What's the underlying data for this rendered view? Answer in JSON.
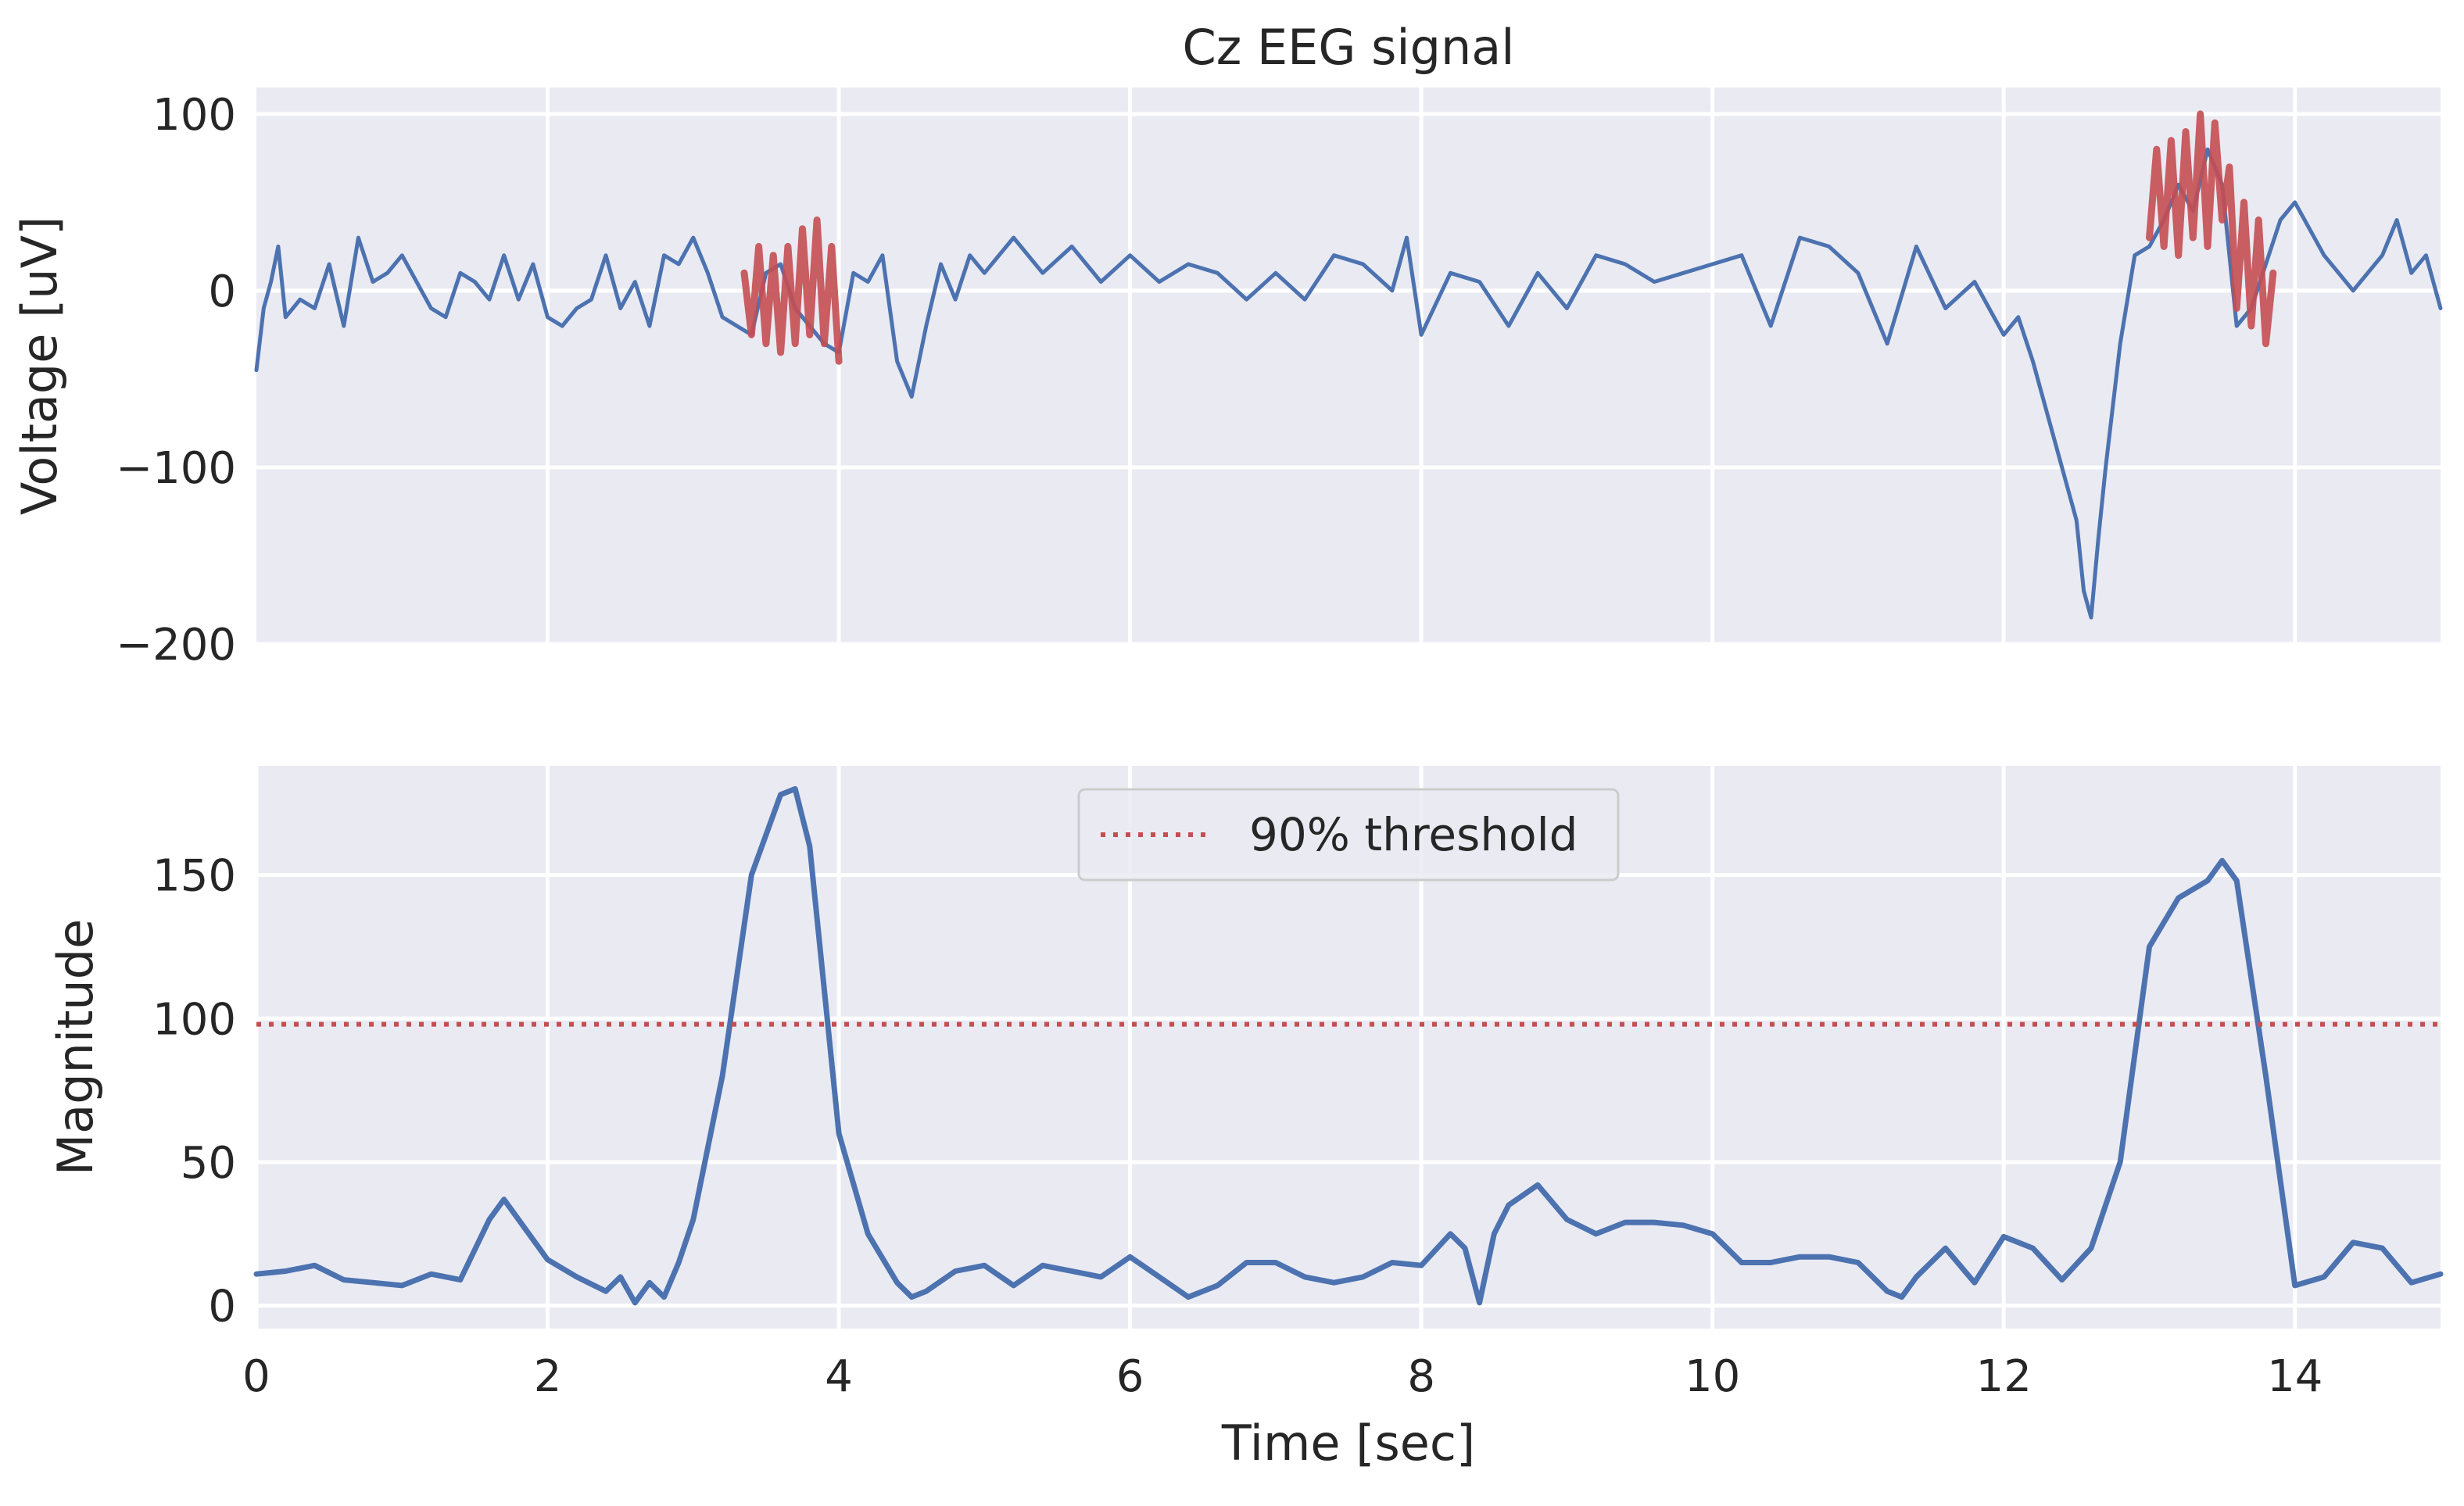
{
  "chart_data": [
    {
      "type": "line",
      "title": "Cz EEG signal",
      "xlabel": "",
      "ylabel": "Voltage [uV]",
      "xlim": [
        0,
        15
      ],
      "ylim": [
        -200,
        115
      ],
      "xticks": [
        2,
        4,
        6,
        8,
        10,
        12,
        14
      ],
      "yticks": [
        100,
        0,
        -100,
        -200
      ],
      "ytick_labels": [
        "100",
        "0",
        "−100",
        "−200"
      ],
      "grid": true,
      "colors": {
        "signal": "#4c72b0",
        "highlight": "#c44e52",
        "background": "#eaeaf2"
      },
      "series": [
        {
          "role": "signal",
          "x": [
            0.0,
            0.05,
            0.1,
            0.15,
            0.2,
            0.3,
            0.4,
            0.5,
            0.6,
            0.7,
            0.8,
            0.9,
            1.0,
            1.1,
            1.2,
            1.3,
            1.4,
            1.5,
            1.6,
            1.7,
            1.8,
            1.9,
            2.0,
            2.1,
            2.2,
            2.3,
            2.4,
            2.5,
            2.6,
            2.7,
            2.8,
            2.9,
            3.0,
            3.1,
            3.2,
            3.3,
            3.4,
            3.5,
            3.6,
            3.7,
            3.8,
            3.9,
            4.0,
            4.1,
            4.2,
            4.3,
            4.4,
            4.5,
            4.6,
            4.7,
            4.8,
            4.9,
            5.0,
            5.2,
            5.4,
            5.6,
            5.8,
            6.0,
            6.2,
            6.4,
            6.6,
            6.8,
            7.0,
            7.2,
            7.4,
            7.6,
            7.8,
            7.9,
            8.0,
            8.2,
            8.4,
            8.6,
            8.8,
            9.0,
            9.2,
            9.4,
            9.6,
            9.8,
            10.0,
            10.2,
            10.4,
            10.6,
            10.8,
            11.0,
            11.2,
            11.4,
            11.6,
            11.8,
            12.0,
            12.1,
            12.2,
            12.3,
            12.4,
            12.5,
            12.55,
            12.6,
            12.65,
            12.7,
            12.8,
            12.9,
            13.0,
            13.1,
            13.2,
            13.3,
            13.4,
            13.5,
            13.6,
            13.7,
            13.8,
            13.9,
            14.0,
            14.2,
            14.4,
            14.6,
            14.7,
            14.8,
            14.9,
            15.0
          ],
          "y": [
            -45,
            -10,
            5,
            25,
            -15,
            -5,
            -10,
            15,
            -20,
            30,
            5,
            10,
            20,
            5,
            -10,
            -15,
            10,
            5,
            -5,
            20,
            -5,
            15,
            -15,
            -20,
            -10,
            -5,
            20,
            -10,
            5,
            -20,
            20,
            15,
            30,
            10,
            -15,
            -20,
            -25,
            10,
            15,
            -10,
            -20,
            -30,
            -35,
            10,
            5,
            20,
            -40,
            -60,
            -20,
            15,
            -5,
            20,
            10,
            30,
            10,
            25,
            5,
            20,
            5,
            15,
            10,
            -5,
            10,
            -5,
            20,
            15,
            0,
            30,
            -25,
            10,
            5,
            -20,
            10,
            -10,
            20,
            15,
            5,
            10,
            15,
            20,
            -20,
            30,
            25,
            10,
            -30,
            25,
            -10,
            5,
            -25,
            -15,
            -40,
            -70,
            -100,
            -130,
            -170,
            -185,
            -140,
            -100,
            -30,
            20,
            25,
            40,
            60,
            45,
            80,
            60,
            -20,
            -10,
            15,
            40,
            50,
            20,
            0,
            20,
            40,
            10,
            20,
            -10
          ]
        },
        {
          "role": "highlight",
          "x": [
            3.35,
            3.4,
            3.45,
            3.5,
            3.55,
            3.6,
            3.65,
            3.7,
            3.75,
            3.8,
            3.85,
            3.9,
            3.95,
            4.0
          ],
          "y": [
            10,
            -25,
            25,
            -30,
            20,
            -35,
            25,
            -30,
            35,
            -25,
            40,
            -30,
            25,
            -40
          ]
        },
        {
          "role": "highlight",
          "x": [
            13.0,
            13.05,
            13.1,
            13.15,
            13.2,
            13.25,
            13.3,
            13.35,
            13.4,
            13.45,
            13.5,
            13.55,
            13.6,
            13.65,
            13.7,
            13.75,
            13.8,
            13.85
          ],
          "y": [
            30,
            80,
            25,
            85,
            20,
            90,
            30,
            100,
            25,
            95,
            40,
            70,
            -10,
            50,
            -20,
            40,
            -30,
            10
          ]
        }
      ]
    },
    {
      "type": "line",
      "title": "",
      "xlabel": "Time [sec]",
      "ylabel": "Magnitude",
      "xlim": [
        0,
        15
      ],
      "ylim": [
        -8,
        188
      ],
      "xticks": [
        0,
        2,
        4,
        6,
        8,
        10,
        12,
        14
      ],
      "yticks": [
        0,
        50,
        100,
        150
      ],
      "grid": true,
      "legend": {
        "entries": [
          "90% threshold"
        ],
        "placement": "upper-center"
      },
      "colors": {
        "magnitude": "#4c72b0",
        "threshold": "#c44e52",
        "background": "#eaeaf2"
      },
      "series": [
        {
          "role": "magnitude",
          "x": [
            0.0,
            0.2,
            0.4,
            0.6,
            0.8,
            1.0,
            1.2,
            1.4,
            1.6,
            1.7,
            1.8,
            2.0,
            2.2,
            2.4,
            2.5,
            2.6,
            2.7,
            2.8,
            2.9,
            3.0,
            3.2,
            3.4,
            3.6,
            3.7,
            3.8,
            4.0,
            4.2,
            4.4,
            4.5,
            4.6,
            4.8,
            5.0,
            5.2,
            5.4,
            5.6,
            5.8,
            6.0,
            6.2,
            6.4,
            6.6,
            6.8,
            7.0,
            7.2,
            7.4,
            7.6,
            7.8,
            8.0,
            8.2,
            8.3,
            8.4,
            8.5,
            8.6,
            8.8,
            9.0,
            9.2,
            9.4,
            9.6,
            9.8,
            10.0,
            10.2,
            10.4,
            10.6,
            10.8,
            11.0,
            11.2,
            11.3,
            11.4,
            11.6,
            11.8,
            12.0,
            12.2,
            12.4,
            12.6,
            12.8,
            13.0,
            13.2,
            13.4,
            13.5,
            13.6,
            13.8,
            14.0,
            14.2,
            14.4,
            14.6,
            14.8,
            15.0
          ],
          "y": [
            11,
            12,
            14,
            9,
            8,
            7,
            11,
            9,
            30,
            37,
            30,
            16,
            10,
            5,
            10,
            1,
            8,
            3,
            15,
            30,
            80,
            150,
            178,
            180,
            160,
            60,
            25,
            8,
            3,
            5,
            12,
            14,
            7,
            14,
            12,
            10,
            17,
            10,
            3,
            7,
            15,
            15,
            10,
            8,
            10,
            15,
            14,
            25,
            20,
            1,
            25,
            35,
            42,
            30,
            25,
            29,
            29,
            28,
            25,
            15,
            15,
            17,
            17,
            15,
            5,
            3,
            10,
            20,
            8,
            24,
            20,
            9,
            20,
            50,
            125,
            142,
            148,
            155,
            148,
            80,
            7,
            10,
            22,
            20,
            8,
            11
          ]
        },
        {
          "role": "threshold",
          "name": "90% threshold",
          "x": [
            0,
            15
          ],
          "y": [
            98,
            98
          ]
        }
      ]
    }
  ]
}
